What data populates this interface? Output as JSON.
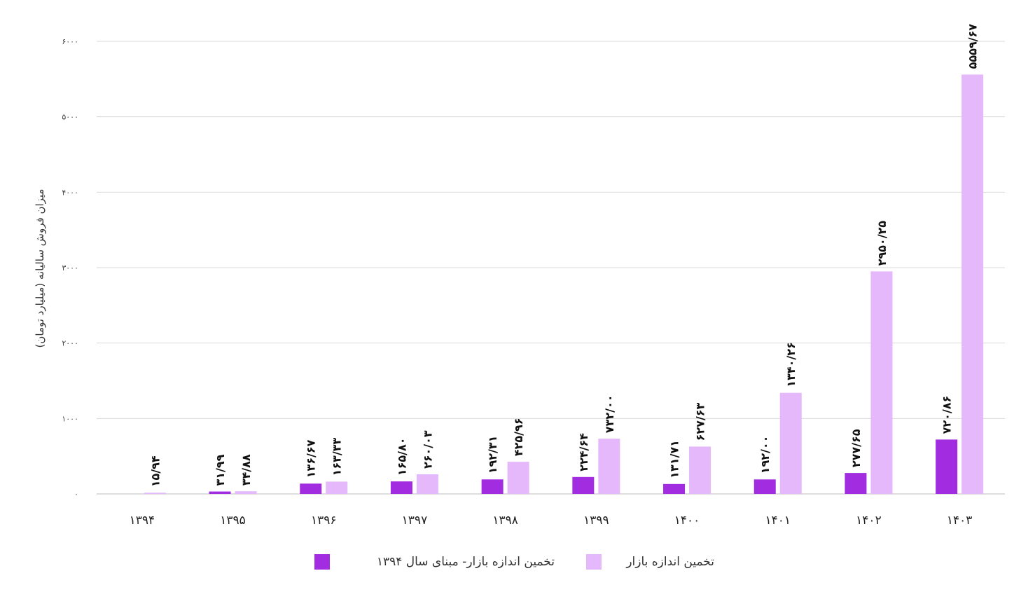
{
  "chart_data": {
    "type": "bar",
    "ylabel": "میزان فروش سالیانه (میلیارد تومان)",
    "xlabel": "",
    "ylim": [
      0,
      6000
    ],
    "yticks": [
      0,
      1000,
      2000,
      3000,
      4000,
      5000,
      6000
    ],
    "ytick_labels": [
      "۰",
      "۱۰۰۰",
      "۲۰۰۰",
      "۳۰۰۰",
      "۴۰۰۰",
      "۵۰۰۰",
      "۶۰۰۰"
    ],
    "grid": true,
    "legend_position": "bottom",
    "categories": [
      "۱۳۹۴",
      "۱۳۹۵",
      "۱۳۹۶",
      "۱۳۹۷",
      "۱۳۹۸",
      "۱۳۹۹",
      "۱۴۰۰",
      "۱۴۰۱",
      "۱۴۰۲",
      "۱۴۰۳"
    ],
    "series": [
      {
        "name": "تخمین اندازه بازار- مبنای سال ۱۳۹۴",
        "color": "#a12ce0",
        "values": [
          null,
          31.99,
          136.67,
          165.8,
          192.31,
          224.64,
          131.71,
          192.0,
          277.65,
          720.86
        ],
        "labels": [
          "",
          "۳۱/۹۹",
          "۱۳۶/۶۷",
          "۱۶۵/۸۰",
          "۱۹۲/۳۱",
          "۲۲۴/۶۴",
          "۱۳۱/۷۱",
          "۱۹۲/۰۰",
          "۲۷۷/۶۵",
          "۷۲۰/۸۶"
        ]
      },
      {
        "name": "تخمین اندازه بازار",
        "color": "#e4b8fb",
        "values": [
          15.94,
          34.88,
          163.33,
          260.03,
          425.96,
          732.0,
          627.63,
          1340.26,
          2950.25,
          5559.67
        ],
        "labels": [
          "۱۵/۹۴",
          "۳۴/۸۸",
          "۱۶۳/۳۳",
          "۲۶۰/۰۳",
          "۴۲۵/۹۶",
          "۷۳۲/۰۰",
          "۶۲۷/۶۳",
          "۱۳۴۰/۲۶",
          "۲۹۵۰/۲۵",
          "۵۵۵۹/۶۷"
        ]
      }
    ]
  }
}
